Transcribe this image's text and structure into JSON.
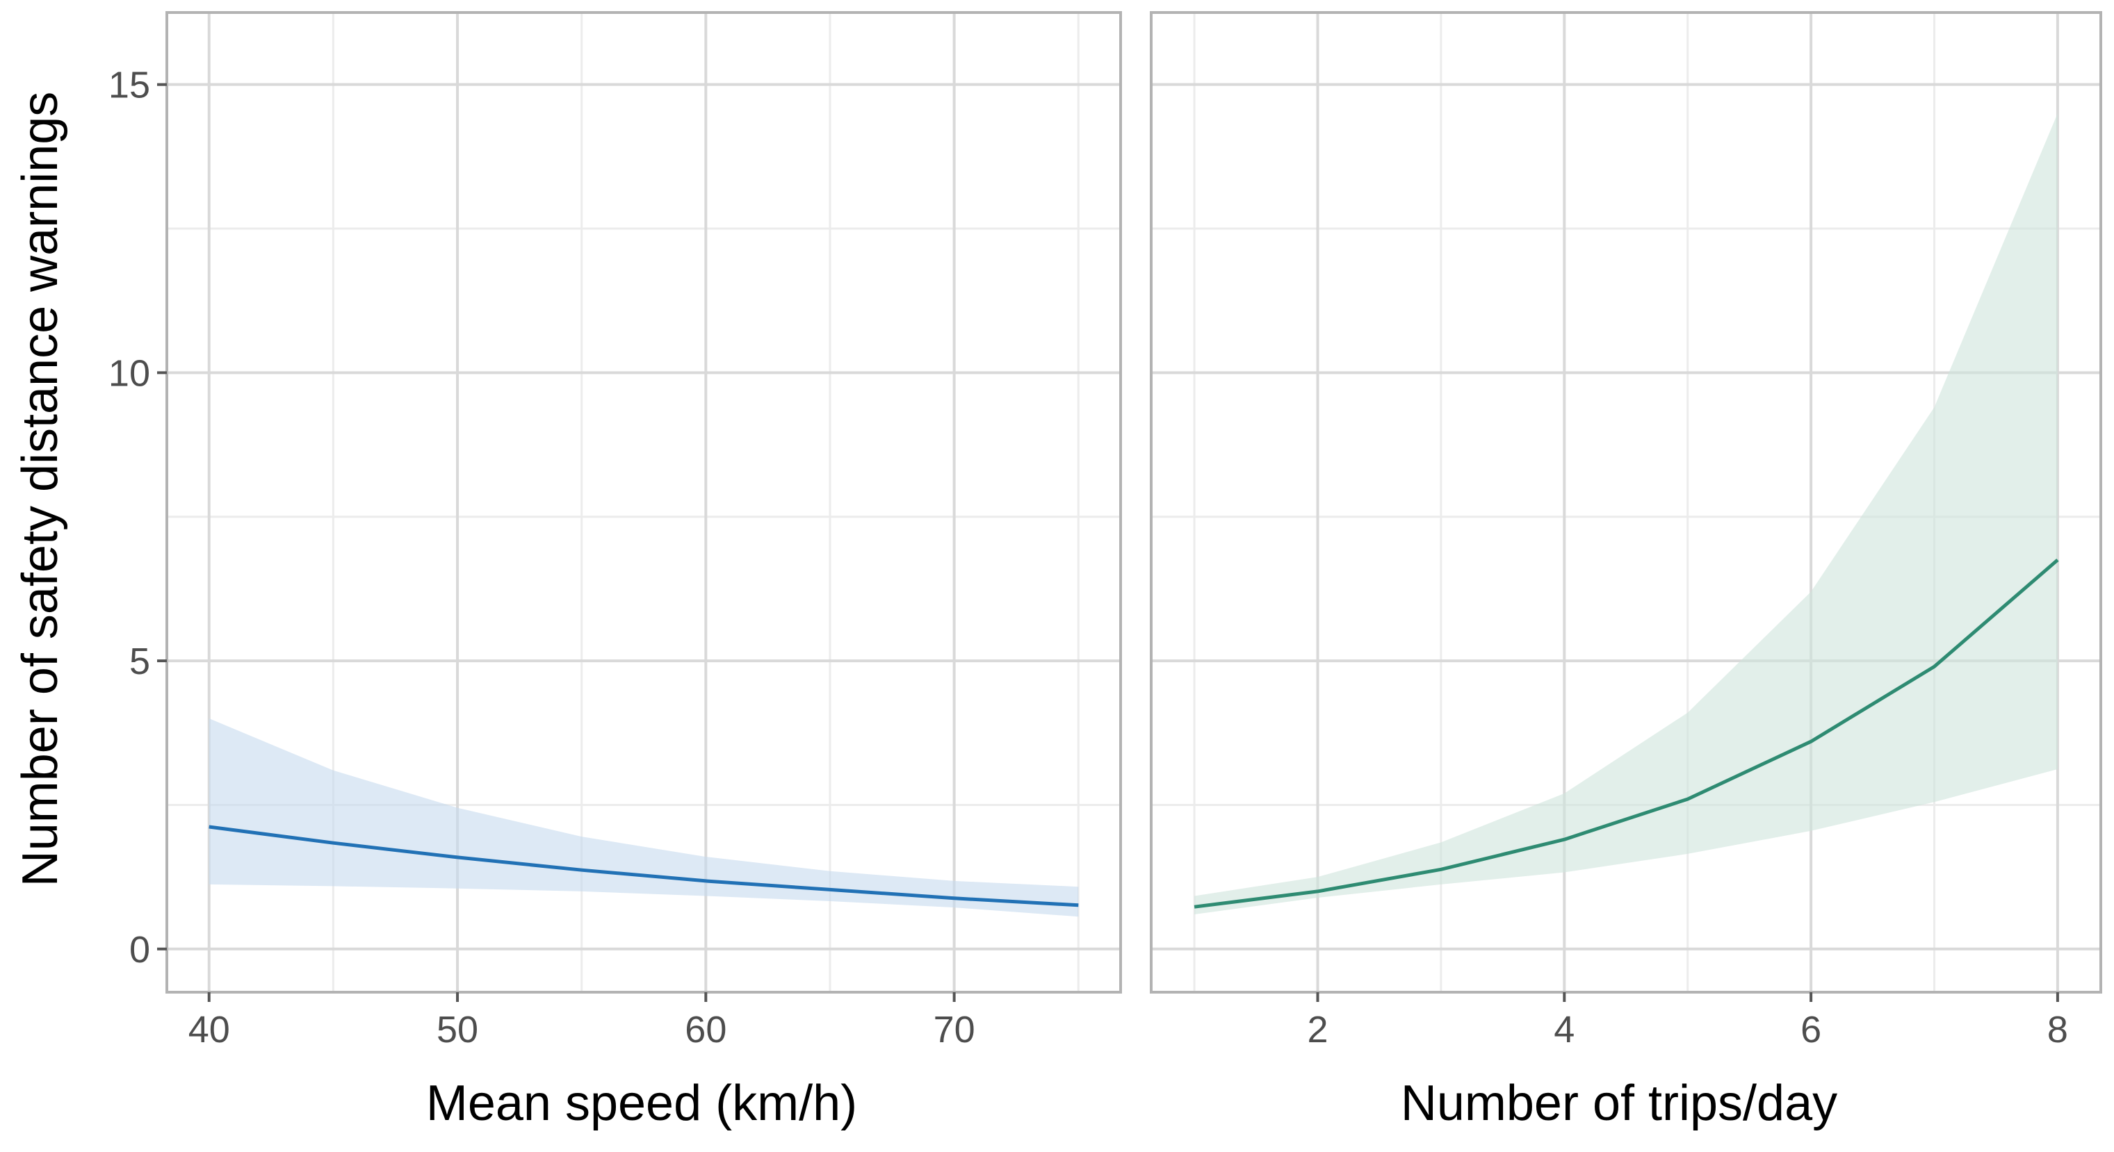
{
  "chart_data": [
    {
      "type": "line",
      "panel": "left",
      "xlabel": "Mean speed (km/h)",
      "ylabel": "Number of safety distance warnings",
      "xlim": [
        38.3,
        76.7
      ],
      "ylim": [
        -0.75,
        16.25
      ],
      "x_ticks": [
        40,
        50,
        60,
        70
      ],
      "x_minor_ticks": [
        45,
        55,
        65,
        75
      ],
      "y_ticks": [
        0,
        5,
        10,
        15
      ],
      "y_minor_ticks": [
        2.5,
        7.5,
        12.5
      ],
      "grid": true,
      "color": "#2171b5",
      "band_color": "#c6dbef",
      "x": [
        40,
        45,
        50,
        55,
        60,
        65,
        70,
        75
      ],
      "series": [
        {
          "values": [
            2.12,
            1.84,
            1.59,
            1.37,
            1.18,
            1.03,
            0.88,
            0.76
          ]
        }
      ],
      "band": {
        "lower": [
          1.12,
          1.09,
          1.05,
          1.0,
          0.92,
          0.83,
          0.72,
          0.56
        ],
        "upper": [
          4.0,
          3.1,
          2.45,
          1.95,
          1.6,
          1.35,
          1.18,
          1.08
        ]
      }
    },
    {
      "type": "line",
      "panel": "right",
      "xlabel": "Number of trips/day",
      "ylabel": "",
      "xlim": [
        0.65,
        8.35
      ],
      "ylim": [
        -0.75,
        16.25
      ],
      "x_ticks": [
        2,
        4,
        6,
        8
      ],
      "x_minor_ticks": [
        1,
        3,
        5,
        7
      ],
      "y_ticks": [
        0,
        5,
        10,
        15
      ],
      "y_minor_ticks": [
        2.5,
        7.5,
        12.5
      ],
      "grid": true,
      "color": "#2e8b72",
      "band_color": "#cfe4dc",
      "x": [
        1,
        2,
        3,
        4,
        5,
        6,
        7,
        8
      ],
      "series": [
        {
          "values": [
            0.73,
            1.0,
            1.38,
            1.9,
            2.6,
            3.6,
            4.9,
            6.75
          ]
        }
      ],
      "band": {
        "lower": [
          0.6,
          0.89,
          1.12,
          1.33,
          1.65,
          2.05,
          2.55,
          3.12
        ],
        "upper": [
          0.92,
          1.25,
          1.85,
          2.7,
          4.1,
          6.2,
          9.4,
          14.5
        ]
      }
    }
  ]
}
